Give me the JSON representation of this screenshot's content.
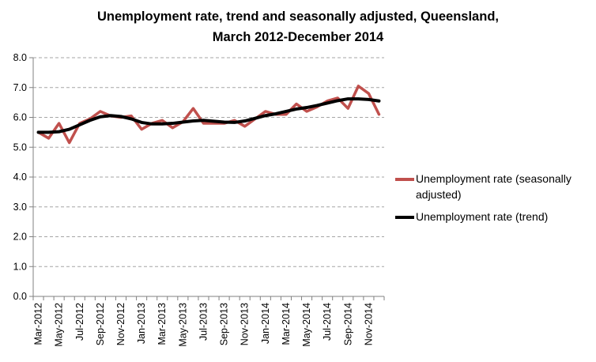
{
  "chart_data": {
    "type": "line",
    "title_line1": "Unemployment rate, trend and seasonally adjusted, Queensland,",
    "title_line2": "March 2012-December 2014",
    "xlabel": "",
    "ylabel": "",
    "ylim": [
      0,
      8
    ],
    "y_ticks": [
      "0.0",
      "1.0",
      "2.0",
      "3.0",
      "4.0",
      "5.0",
      "6.0",
      "7.0",
      "8.0"
    ],
    "grid": "horizontal dashed",
    "legend_position": "right",
    "categories": [
      "Mar-2012",
      "Apr-2012",
      "May-2012",
      "Jun-2012",
      "Jul-2012",
      "Aug-2012",
      "Sep-2012",
      "Oct-2012",
      "Nov-2012",
      "Dec-2012",
      "Jan-2013",
      "Feb-2013",
      "Mar-2013",
      "Apr-2013",
      "May-2013",
      "Jun-2013",
      "Jul-2013",
      "Aug-2013",
      "Sep-2013",
      "Oct-2013",
      "Nov-2013",
      "Dec-2013",
      "Jan-2014",
      "Feb-2014",
      "Mar-2014",
      "Apr-2014",
      "May-2014",
      "Jun-2014",
      "Jul-2014",
      "Aug-2014",
      "Sep-2014",
      "Oct-2014",
      "Nov-2014",
      "Dec-2014"
    ],
    "x_tick_labels": [
      "Mar-2012",
      "May-2012",
      "Jul-2012",
      "Sep-2012",
      "Nov-2012",
      "Jan-2013",
      "Mar-2013",
      "May-2013",
      "Jul-2013",
      "Sep-2013",
      "Nov-2013",
      "Jan-2014",
      "Mar-2014",
      "May-2014",
      "Jul-2014",
      "Sep-2014",
      "Nov-2014"
    ],
    "series": [
      {
        "name": "Unemployment rate (seasonally adjusted)",
        "color": "#c0504d",
        "values": [
          5.5,
          5.3,
          5.8,
          5.15,
          5.8,
          5.95,
          6.2,
          6.05,
          6.0,
          6.05,
          5.6,
          5.8,
          5.9,
          5.65,
          5.85,
          6.3,
          5.8,
          5.8,
          5.8,
          5.9,
          5.7,
          5.95,
          6.2,
          6.1,
          6.1,
          6.45,
          6.2,
          6.35,
          6.55,
          6.65,
          6.3,
          7.05,
          6.8,
          6.1
        ]
      },
      {
        "name": "Unemployment rate (trend)",
        "color": "#000000",
        "values": [
          5.5,
          5.5,
          5.52,
          5.6,
          5.75,
          5.9,
          6.02,
          6.06,
          6.03,
          5.95,
          5.83,
          5.78,
          5.78,
          5.8,
          5.84,
          5.88,
          5.9,
          5.87,
          5.84,
          5.83,
          5.88,
          5.97,
          6.06,
          6.12,
          6.2,
          6.28,
          6.33,
          6.4,
          6.48,
          6.56,
          6.62,
          6.62,
          6.6,
          6.55
        ]
      }
    ]
  },
  "legend": {
    "item1": "Unemployment rate (seasonally adjusted)",
    "item2": "Unemployment rate (trend)"
  },
  "colors": {
    "seasonally_adjusted": "#c0504d",
    "trend": "#000000",
    "gridline": "#a6a6a6",
    "axis": "#808080"
  }
}
